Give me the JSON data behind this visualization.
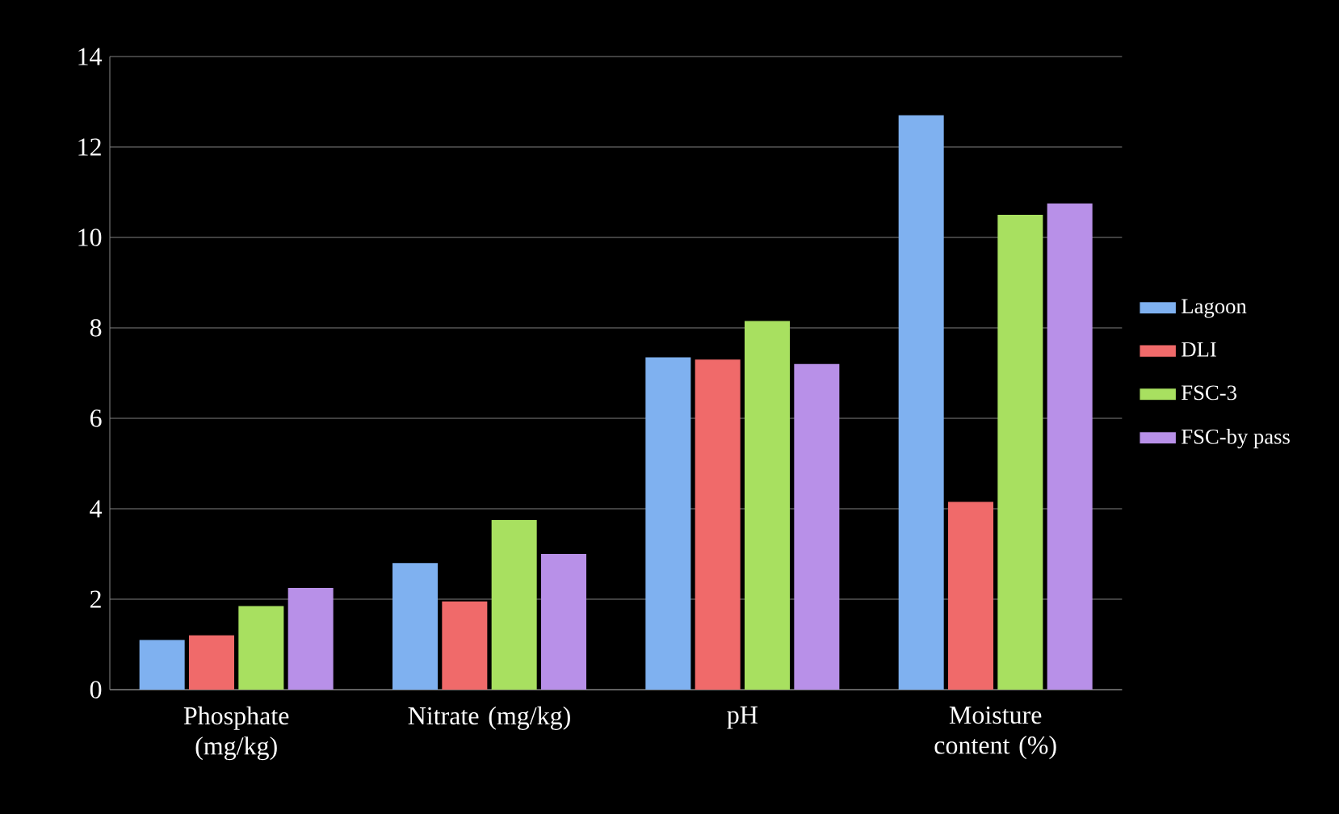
{
  "chart_data": {
    "type": "bar",
    "categories": [
      "Phosphate (mg/kg)",
      "Nitrate (mg/kg)",
      "pH",
      "Moisture content (%)"
    ],
    "series": [
      {
        "name": "Lagoon",
        "color": "#7fb1f0",
        "values": [
          1.1,
          2.8,
          7.35,
          12.7
        ]
      },
      {
        "name": "DLI",
        "color": "#f06a6a",
        "values": [
          1.2,
          1.95,
          7.3,
          4.15
        ]
      },
      {
        "name": "FSC-3",
        "color": "#a8e060",
        "values": [
          1.85,
          3.75,
          8.15,
          10.5
        ]
      },
      {
        "name": "FSC-by pass",
        "color": "#b890e8",
        "values": [
          2.25,
          3.0,
          7.2,
          10.75
        ]
      }
    ],
    "ylim": [
      0,
      14
    ],
    "yticks": [
      0,
      2,
      4,
      6,
      8,
      10,
      12,
      14
    ],
    "grid": "y",
    "legend": "right"
  }
}
